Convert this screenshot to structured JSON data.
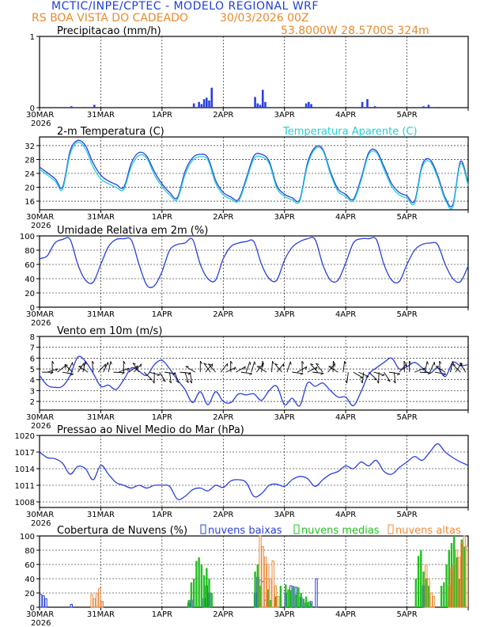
{
  "header": {
    "title": "MCTIC/INPE/CPTEC - MODELO REGIONAL WRF",
    "location": "RS BOA VISTA DO CADEADO",
    "run": "30/03/2026 00Z",
    "coords": "53.8000W 28.5700S 324m",
    "title_color": "#1f3fd8",
    "accent_color": "#e88a2e"
  },
  "time_axis": {
    "start_label": "30MAR",
    "start_year": "2026",
    "labels": [
      "31MAR",
      "1APR",
      "2APR",
      "3APR",
      "4APR",
      "5APR"
    ],
    "hours_total": 168
  },
  "chart_data": [
    {
      "id": "precip",
      "type": "bar",
      "title": "Precipitacao (mm/h)",
      "ylim": [
        0,
        1
      ],
      "yticks": [
        0,
        1
      ],
      "color": "#2a3fe0",
      "hours": [
        12,
        21,
        60,
        62,
        63,
        64,
        65,
        66,
        67,
        84,
        85,
        86,
        87,
        88,
        104,
        105,
        106,
        126,
        128,
        129,
        131,
        150,
        151,
        152,
        156
      ],
      "values": [
        0.02,
        0.04,
        0.06,
        0.08,
        0.05,
        0.12,
        0.14,
        0.1,
        0.28,
        0.15,
        0.06,
        0.04,
        0.25,
        0.08,
        0.06,
        0.08,
        0.05,
        0.08,
        0.12,
        0.01,
        0.02,
        0.02,
        0.01,
        0.04,
        0.01
      ]
    },
    {
      "id": "temp",
      "type": "line",
      "title": "2-m Temperatura (C)",
      "legend": "Temperatura Aparente (C)",
      "ylim": [
        13.5,
        34.5
      ],
      "yticks": [
        16,
        20,
        24,
        28,
        32
      ],
      "series": [
        {
          "name": "2-m Temperatura (C)",
          "color": "#2a3fe0",
          "t": [
            0,
            6,
            9,
            12,
            15,
            18,
            21,
            24,
            27,
            30,
            33,
            36,
            39,
            42,
            45,
            48,
            51,
            54,
            57,
            60,
            63,
            66,
            69,
            72,
            75,
            78,
            81,
            84,
            87,
            90,
            93,
            96,
            99,
            102,
            105,
            108,
            111,
            114,
            117,
            120,
            123,
            126,
            129,
            132,
            135,
            138,
            141,
            144,
            147,
            150,
            153,
            156,
            159,
            162,
            165,
            168
          ],
          "v": [
            25.8,
            22.5,
            20.0,
            30.5,
            33.5,
            32.0,
            27.0,
            23.5,
            21.8,
            20.8,
            20.0,
            27.0,
            30.0,
            29.0,
            24.5,
            21.0,
            18.5,
            17.0,
            24.5,
            28.5,
            29.5,
            28.5,
            22.0,
            18.5,
            17.2,
            16.5,
            22.5,
            29.0,
            29.5,
            27.5,
            20.5,
            18.0,
            17.0,
            16.5,
            27.0,
            31.5,
            31.0,
            24.5,
            19.5,
            18.0,
            16.5,
            22.5,
            30.0,
            30.5,
            26.0,
            21.0,
            18.5,
            17.5,
            16.0,
            26.5,
            28.0,
            23.5,
            17.0,
            15.0,
            27.5,
            21.0
          ]
        },
        {
          "name": "Temperatura Aparente (C)",
          "color": "#20d0d8",
          "t": [
            0,
            6,
            9,
            12,
            15,
            18,
            21,
            24,
            27,
            30,
            33,
            36,
            39,
            42,
            45,
            48,
            51,
            54,
            57,
            60,
            63,
            66,
            69,
            72,
            75,
            78,
            81,
            84,
            87,
            90,
            93,
            96,
            99,
            102,
            105,
            108,
            111,
            114,
            117,
            120,
            123,
            126,
            129,
            132,
            135,
            138,
            141,
            144,
            147,
            150,
            153,
            156,
            159,
            162,
            165,
            168
          ],
          "v": [
            25.2,
            21.8,
            19.4,
            29.6,
            33.0,
            31.0,
            25.8,
            22.4,
            21.0,
            20.0,
            19.4,
            26.0,
            29.2,
            28.4,
            23.6,
            20.2,
            17.8,
            16.5,
            23.6,
            27.8,
            28.8,
            27.8,
            21.2,
            17.8,
            16.6,
            16.0,
            21.8,
            28.2,
            28.8,
            26.8,
            19.8,
            17.4,
            16.4,
            16.0,
            26.2,
            31.0,
            30.6,
            23.8,
            18.8,
            17.4,
            16.0,
            21.8,
            29.4,
            30.0,
            25.2,
            20.2,
            17.8,
            16.8,
            15.4,
            25.8,
            27.4,
            22.8,
            16.4,
            14.4,
            26.8,
            20.4
          ]
        }
      ]
    },
    {
      "id": "rh",
      "type": "line",
      "title": "Umidade Relativa em 2m (%)",
      "ylim": [
        0,
        100
      ],
      "yticks": [
        0,
        20,
        40,
        60,
        80,
        100
      ],
      "series": [
        {
          "name": "Umidade Relativa",
          "color": "#2a3fe0",
          "t": [
            0,
            3,
            6,
            9,
            12,
            15,
            18,
            21,
            24,
            27,
            30,
            33,
            36,
            39,
            42,
            45,
            48,
            51,
            54,
            57,
            60,
            63,
            66,
            69,
            72,
            75,
            78,
            81,
            84,
            87,
            90,
            93,
            96,
            99,
            102,
            105,
            108,
            111,
            114,
            117,
            120,
            123,
            126,
            129,
            132,
            135,
            138,
            141,
            144,
            147,
            150,
            153,
            156,
            159,
            162,
            165,
            168
          ],
          "v": [
            68,
            72,
            90,
            95,
            95,
            60,
            38,
            35,
            60,
            85,
            95,
            96,
            94,
            60,
            31,
            30,
            50,
            80,
            88,
            90,
            95,
            60,
            40,
            38,
            68,
            85,
            90,
            92,
            92,
            60,
            40,
            38,
            66,
            84,
            92,
            96,
            95,
            60,
            38,
            38,
            62,
            90,
            96,
            96,
            95,
            60,
            38,
            36,
            60,
            80,
            88,
            90,
            88,
            60,
            40,
            36,
            58
          ]
        }
      ]
    },
    {
      "id": "wind",
      "type": "line",
      "title": "Vento em 10m (m/s)",
      "ylim": [
        1.2,
        8
      ],
      "yticks": [
        2,
        3,
        4,
        5,
        6,
        7,
        8
      ],
      "series": [
        {
          "name": "Vento em 10m",
          "color": "#2a3fe0",
          "t": [
            0,
            3,
            6,
            9,
            12,
            15,
            18,
            21,
            24,
            27,
            30,
            33,
            36,
            39,
            42,
            45,
            48,
            51,
            54,
            57,
            60,
            63,
            66,
            69,
            72,
            75,
            78,
            81,
            84,
            87,
            90,
            93,
            96,
            99,
            102,
            105,
            108,
            111,
            114,
            117,
            120,
            123,
            126,
            129,
            132,
            135,
            138,
            141,
            144,
            147,
            150,
            153,
            156,
            159,
            162,
            165,
            168
          ],
          "v": [
            4.4,
            3.5,
            3.3,
            3.4,
            4.4,
            6.1,
            5.7,
            4.6,
            3.4,
            3.5,
            3.1,
            4.0,
            5.1,
            4.8,
            4.4,
            5.4,
            5.8,
            5.0,
            4.0,
            3.1,
            1.9,
            2.9,
            1.7,
            2.9,
            2.0,
            1.9,
            2.7,
            2.6,
            2.7,
            2.1,
            3.0,
            3.4,
            1.7,
            2.3,
            1.6,
            3.7,
            3.4,
            3.7,
            3.0,
            2.4,
            2.4,
            1.6,
            2.9,
            4.5,
            5.1,
            5.6,
            6.0,
            5.0,
            5.2,
            5.6,
            5.1,
            4.6,
            5.1,
            4.3,
            5.6,
            5.3,
            5.4
          ]
        }
      ],
      "annotations": [
        "wind barbs (direction)"
      ]
    },
    {
      "id": "pres",
      "type": "line",
      "title": "Pressao ao Nivel Medio do Mar (hPa)",
      "ylim": [
        1007,
        1020
      ],
      "yticks": [
        1008,
        1011,
        1014,
        1017,
        1020
      ],
      "series": [
        {
          "name": "Pressao",
          "color": "#2a3fe0",
          "t": [
            0,
            3,
            6,
            9,
            12,
            15,
            18,
            21,
            24,
            27,
            30,
            33,
            36,
            39,
            42,
            45,
            48,
            51,
            54,
            57,
            60,
            63,
            66,
            69,
            72,
            75,
            78,
            81,
            84,
            87,
            90,
            93,
            96,
            99,
            102,
            105,
            108,
            111,
            114,
            117,
            120,
            123,
            126,
            129,
            132,
            135,
            138,
            141,
            144,
            147,
            150,
            153,
            156,
            159,
            162,
            165,
            168
          ],
          "v": [
            1017.0,
            1016.0,
            1015.8,
            1015.0,
            1013.0,
            1014.4,
            1014.0,
            1012.0,
            1014.6,
            1013.0,
            1011.5,
            1011.0,
            1010.5,
            1011.0,
            1010.5,
            1011.0,
            1011.0,
            1010.8,
            1008.5,
            1009.0,
            1010.2,
            1010.5,
            1010.0,
            1011.0,
            1010.6,
            1011.8,
            1012.0,
            1011.5,
            1009.0,
            1009.5,
            1011.0,
            1011.2,
            1010.8,
            1012.0,
            1012.6,
            1012.2,
            1010.8,
            1012.0,
            1013.0,
            1013.5,
            1014.5,
            1014.0,
            1015.2,
            1014.5,
            1015.5,
            1013.5,
            1013.0,
            1014.2,
            1015.2,
            1016.2,
            1015.5,
            1017.0,
            1018.5,
            1017.0,
            1016.0,
            1015.2,
            1014.6
          ]
        }
      ]
    },
    {
      "id": "clouds",
      "type": "bar",
      "title": "Cobertura de Nuvens (%)",
      "ylim": [
        0,
        100
      ],
      "yticks": [
        0,
        20,
        40,
        60,
        80,
        100
      ],
      "legend": [
        "nuvens baixas",
        "nuvens medias",
        "nuvens altas"
      ],
      "series": [
        {
          "name": "nuvens baixas",
          "color": "#2a3fe0",
          "outline": true,
          "hours": [
            0,
            1,
            2,
            12,
            24,
            58,
            59,
            64,
            65,
            66,
            84,
            85,
            86,
            87,
            88,
            92,
            96,
            98,
            100,
            102,
            104,
            106,
            108,
            150,
            151,
            160
          ],
          "values": [
            18,
            16,
            12,
            4,
            8,
            6,
            10,
            12,
            30,
            20,
            20,
            42,
            38,
            36,
            10,
            6,
            20,
            30,
            28,
            14,
            6,
            8,
            40,
            30,
            32,
            8
          ]
        },
        {
          "name": "nuvens medias",
          "color": "#22c020",
          "outline": false,
          "hours": [
            58,
            59,
            60,
            61,
            62,
            63,
            64,
            65,
            66,
            67,
            84,
            85,
            86,
            89,
            90,
            92,
            94,
            96,
            97,
            98,
            99,
            100,
            101,
            102,
            103,
            104,
            105,
            106,
            147,
            148,
            149,
            150,
            151,
            152,
            157,
            158,
            159,
            160,
            161,
            162,
            163,
            164,
            165,
            166
          ],
          "values": [
            10,
            35,
            40,
            65,
            70,
            60,
            45,
            55,
            40,
            20,
            50,
            60,
            30,
            25,
            10,
            15,
            30,
            32,
            25,
            24,
            30,
            18,
            28,
            20,
            12,
            15,
            8,
            6,
            40,
            72,
            80,
            50,
            40,
            30,
            30,
            35,
            60,
            80,
            90,
            100,
            70,
            40,
            95,
            85
          ]
        },
        {
          "name": "nuvens altas",
          "color": "#f08a3a",
          "outline": true,
          "hours": [
            20,
            21,
            22,
            23,
            24,
            86,
            87,
            88,
            89,
            90,
            91,
            92,
            93,
            151,
            152,
            153,
            154,
            160,
            161,
            162,
            163,
            164,
            165,
            166,
            167
          ],
          "values": [
            18,
            12,
            20,
            26,
            8,
            100,
            85,
            70,
            60,
            40,
            65,
            30,
            15,
            60,
            40,
            20,
            15,
            30,
            55,
            60,
            80,
            70,
            90,
            100,
            85
          ]
        }
      ]
    }
  ]
}
